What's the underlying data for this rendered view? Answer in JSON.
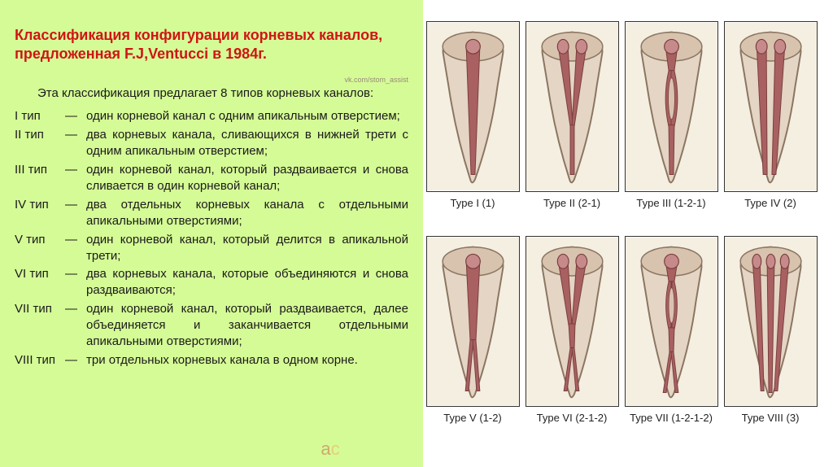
{
  "panel_bg": "#d5fb96",
  "title_color": "#d01515",
  "text_color": "#1a1a1a",
  "title": "Классификация конфигурации корневых каналов, предложенная F.J,Ventucci в 1984г.",
  "watermark_top": "vk.com/stom_assist",
  "intro": "Эта классификация предлагает 8 типов корневых каналов:",
  "types": [
    {
      "label": "I тип",
      "desc": "один корневой канал с одним апикальным отверстием;"
    },
    {
      "label": "II тип",
      "desc": "два корневых канала, сливающихся в нижней трети с одним апикальным отверстием;"
    },
    {
      "label": "III тип",
      "desc": "один корневой канал, который раздваивается и снова сливается в один корневой канал;"
    },
    {
      "label": "IV тип",
      "desc": "два отдельных корневых канала с отдельными апикальными отверстиями;"
    },
    {
      "label": "V тип",
      "desc": "один корневой канал, который делится в апикальной трети;"
    },
    {
      "label": "VI тип",
      "desc": "два корневых канала, которые объединяются и снова раздваиваются;"
    },
    {
      "label": "VII тип",
      "desc": "один корневой канал, который раздваивается, далее объединяется и заканчивается отдельными апикальными отверстиями;"
    },
    {
      "label": "VIII тип",
      "desc": "три отдельных корневых канала в одном корне."
    }
  ],
  "diagram_bg": "#f5efe2",
  "tooth_outline_fill": "#e4d5c5",
  "tooth_outline_stroke": "#8a7560",
  "tooth_top_ellipse_fill": "#d8c3af",
  "canal_fill": "#a86060",
  "canal_stroke": "#7a3e3e",
  "canal_top_fill": "#c78a8a",
  "diagrams": [
    {
      "label": "Type I (1)",
      "kind": "t1"
    },
    {
      "label": "Type II (2-1)",
      "kind": "t2"
    },
    {
      "label": "Type III (1-2-1)",
      "kind": "t3"
    },
    {
      "label": "Type IV (2)",
      "kind": "t4"
    },
    {
      "label": "Type V (1-2)",
      "kind": "t5"
    },
    {
      "label": "Type VI (2-1-2)",
      "kind": "t6"
    },
    {
      "label": "Type VII (1-2-1-2)",
      "kind": "t7"
    },
    {
      "label": "Type VIII (3)",
      "kind": "t8"
    }
  ]
}
